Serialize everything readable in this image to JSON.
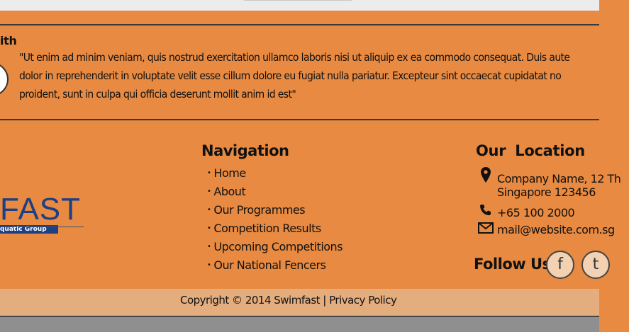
{
  "testimonial": {
    "name": "ith",
    "quote_lines": [
      "\"Ut enim ad minim veniam, quis nostrud exercitation ullamco laboris nisi ut aliquip ex ea commodo consequat. Duis aute",
      "dolor in reprehenderit in voluptate velit esse cillum dolore eu fugiat nulla pariatur. Excepteur sint occaecat cupidatat no",
      "proident, sunt in culpa qui officia deserunt mollit anim id est\""
    ]
  },
  "logo": {
    "text": "FAST",
    "tagline": "quatic Group"
  },
  "navigation": {
    "title": "Navigation",
    "items": [
      "Home",
      "About",
      "Our Programmes",
      "Competition Results",
      "Upcoming Competitions",
      "Our National Fencers"
    ]
  },
  "location": {
    "title": "Our Location",
    "address_line1": "Company Name, 12 Th",
    "address_line2": "Singapore 123456",
    "phone": "+65 100 2000",
    "email": "mail@website.com.sg"
  },
  "follow": {
    "label": "Follow Us:",
    "facebook_glyph": "f",
    "twitter_glyph": "t"
  },
  "footer": {
    "copyright": "Copyright © 2014 Swimfast |",
    "privacy_link": "Privacy Policy"
  },
  "icons": {
    "marker": "map-marker-icon",
    "phone": "phone-icon",
    "mail": "mail-icon"
  },
  "colors": {
    "background": "#e88a41",
    "copyright_bar": "#e4ad7e",
    "logo": "#1d3f84"
  }
}
